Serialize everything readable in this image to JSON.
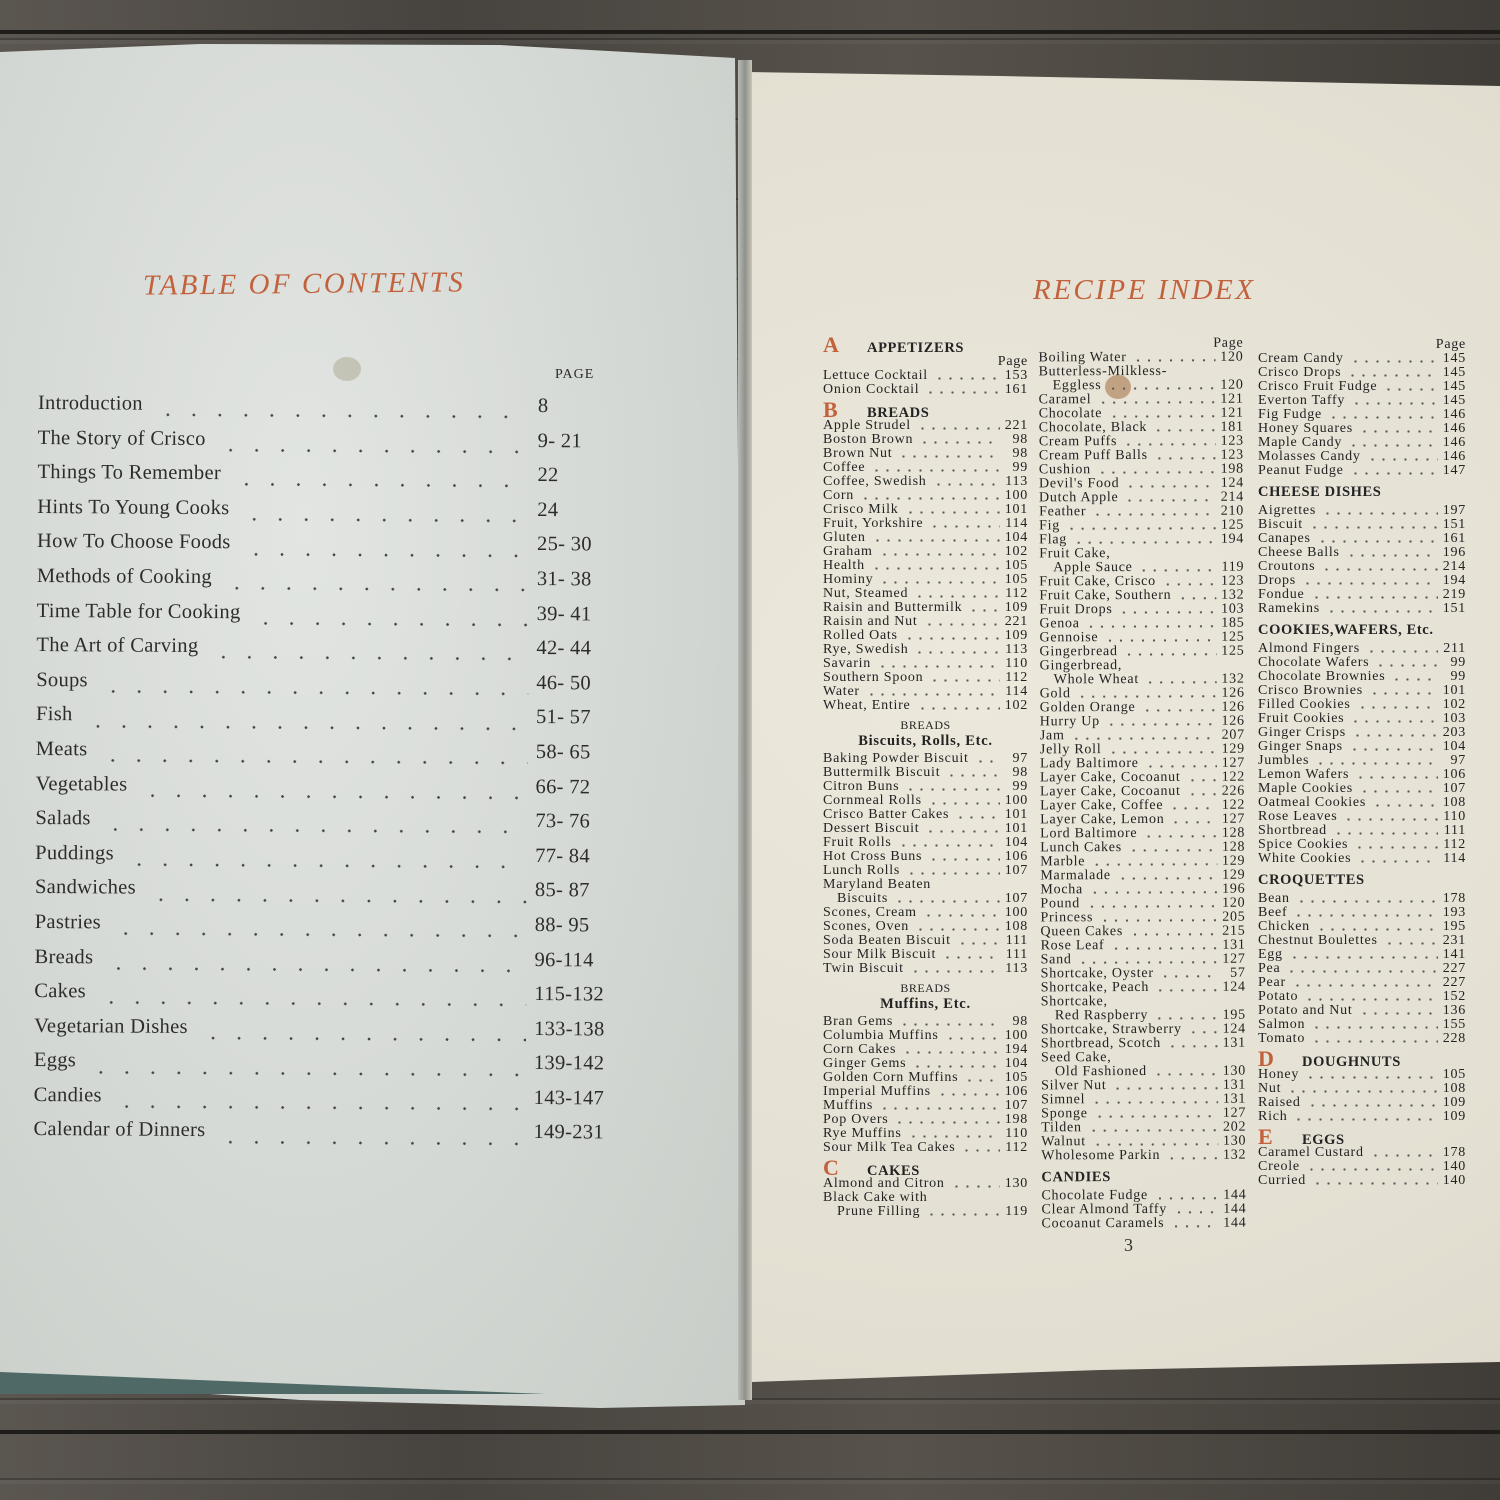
{
  "left_page": {
    "title": "TABLE OF CONTENTS",
    "page_label": "PAGE",
    "entries": [
      {
        "name": "Introduction",
        "page": "8"
      },
      {
        "name": "The Story of Crisco",
        "page": "9- 21"
      },
      {
        "name": "Things To Remember",
        "page": "22"
      },
      {
        "name": "Hints To Young Cooks",
        "page": "24"
      },
      {
        "name": "How To Choose Foods",
        "page": "25- 30"
      },
      {
        "name": "Methods of Cooking",
        "page": "31- 38"
      },
      {
        "name": "Time Table for Cooking",
        "page": "39- 41"
      },
      {
        "name": "The Art of Carving",
        "page": "42- 44"
      },
      {
        "name": "Soups",
        "page": "46- 50"
      },
      {
        "name": "Fish",
        "page": "51- 57"
      },
      {
        "name": "Meats",
        "page": "58- 65"
      },
      {
        "name": "Vegetables",
        "page": "66- 72"
      },
      {
        "name": "Salads",
        "page": "73- 76"
      },
      {
        "name": "Puddings",
        "page": "77- 84"
      },
      {
        "name": "Sandwiches",
        "page": "85- 87"
      },
      {
        "name": "Pastries",
        "page": "88- 95"
      },
      {
        "name": "Breads",
        "page": "96-114"
      },
      {
        "name": "Cakes",
        "page": "115-132"
      },
      {
        "name": "Vegetarian Dishes",
        "page": "133-138"
      },
      {
        "name": "Eggs",
        "page": "139-142"
      },
      {
        "name": "Candies",
        "page": "143-147"
      },
      {
        "name": "Calendar of Dinners",
        "page": "149-231"
      }
    ]
  },
  "right_page": {
    "title": "RECIPE INDEX",
    "folio": "3",
    "accent_color": "#c2623c",
    "columns": [
      {
        "blocks": [
          {
            "letter": "A",
            "title": "APPETIZERS",
            "page_label": "Page",
            "items": [
              {
                "name": "Lettuce Cocktail",
                "page": "153"
              },
              {
                "name": "Onion Cocktail",
                "page": "161"
              }
            ]
          },
          {
            "letter": "B",
            "title": "BREADS",
            "items": [
              {
                "name": "Apple Strudel",
                "page": "221"
              },
              {
                "name": "Boston Brown",
                "page": "98"
              },
              {
                "name": "Brown Nut",
                "page": "98"
              },
              {
                "name": "Coffee",
                "page": "99"
              },
              {
                "name": "Coffee, Swedish",
                "page": "113"
              },
              {
                "name": "Corn",
                "page": "100"
              },
              {
                "name": "Crisco Milk",
                "page": "101"
              },
              {
                "name": "Fruit, Yorkshire",
                "page": "114"
              },
              {
                "name": "Gluten",
                "page": "104"
              },
              {
                "name": "Graham",
                "page": "102"
              },
              {
                "name": "Health",
                "page": "105"
              },
              {
                "name": "Hominy",
                "page": "105"
              },
              {
                "name": "Nut, Steamed",
                "page": "112"
              },
              {
                "name": "Raisin and Buttermilk",
                "page": "109"
              },
              {
                "name": "Raisin and Nut",
                "page": "221"
              },
              {
                "name": "Rolled Oats",
                "page": "109"
              },
              {
                "name": "Rye, Swedish",
                "page": "113"
              },
              {
                "name": "Savarin",
                "page": "110"
              },
              {
                "name": "Southern Spoon",
                "page": "112"
              },
              {
                "name": "Water",
                "page": "114"
              },
              {
                "name": "Wheat, Entire",
                "page": "102"
              }
            ]
          },
          {
            "pre": "BREADS",
            "subtitle": "Biscuits, Rolls, Etc.",
            "items": [
              {
                "name": "Baking Powder Biscuit",
                "page": "97"
              },
              {
                "name": "Buttermilk Biscuit",
                "page": "98"
              },
              {
                "name": "Citron Buns",
                "page": "99"
              },
              {
                "name": "Cornmeal Rolls",
                "page": "100"
              },
              {
                "name": "Crisco Batter Cakes",
                "page": "101"
              },
              {
                "name": "Dessert Biscuit",
                "page": "101"
              },
              {
                "name": "Fruit Rolls",
                "page": "104"
              },
              {
                "name": "Hot Cross Buns",
                "page": "106"
              },
              {
                "name": "Lunch Rolls",
                "page": "107"
              },
              {
                "name": "Maryland Beaten",
                "cont": "Biscuits",
                "page": "107"
              },
              {
                "name": "Scones, Cream",
                "page": "100"
              },
              {
                "name": "Scones, Oven",
                "page": "108"
              },
              {
                "name": "Soda Beaten Biscuit",
                "page": "111"
              },
              {
                "name": "Sour Milk Biscuit",
                "page": "111"
              },
              {
                "name": "Twin Biscuit",
                "page": "113"
              }
            ]
          },
          {
            "pre": "BREADS",
            "subtitle": "Muffins, Etc.",
            "items": [
              {
                "name": "Bran Gems",
                "page": "98"
              },
              {
                "name": "Columbia Muffins",
                "page": "100"
              },
              {
                "name": "Corn Cakes",
                "page": "194"
              },
              {
                "name": "Ginger Gems",
                "page": "104"
              },
              {
                "name": "Golden Corn Muffins",
                "page": "105"
              },
              {
                "name": "Imperial Muffins",
                "page": "106"
              },
              {
                "name": "Muffins",
                "page": "107"
              },
              {
                "name": "Pop Overs",
                "page": "198"
              },
              {
                "name": "Rye Muffins",
                "page": "110"
              },
              {
                "name": "Sour Milk Tea Cakes",
                "page": "112"
              }
            ]
          },
          {
            "letter": "C",
            "title": "CAKES",
            "items": [
              {
                "name": "Almond and Citron",
                "page": "130"
              },
              {
                "name": "Black Cake with",
                "cont": "Prune Filling",
                "page": "119"
              }
            ]
          }
        ]
      },
      {
        "blocks": [
          {
            "page_label": "Page",
            "items": [
              {
                "name": "Boiling Water",
                "page": "120"
              },
              {
                "name": "Butterless-Milkless-",
                "cont": "Eggless",
                "page": "120"
              },
              {
                "name": "Caramel",
                "page": "121"
              },
              {
                "name": "Chocolate",
                "page": "121"
              },
              {
                "name": "Chocolate, Black",
                "page": "181"
              },
              {
                "name": "Cream Puffs",
                "page": "123"
              },
              {
                "name": "Cream Puff Balls",
                "page": "123"
              },
              {
                "name": "Cushion",
                "page": "198"
              },
              {
                "name": "Devil's Food",
                "page": "124"
              },
              {
                "name": "Dutch Apple",
                "page": "214"
              },
              {
                "name": "Feather",
                "page": "210"
              },
              {
                "name": "Fig",
                "page": "125"
              },
              {
                "name": "Flag",
                "page": "194"
              },
              {
                "name": "Fruit Cake,",
                "cont": "Apple Sauce",
                "page": "119"
              },
              {
                "name": "Fruit Cake, Crisco",
                "page": "123"
              },
              {
                "name": "Fruit Cake, Southern",
                "page": "132"
              },
              {
                "name": "Fruit Drops",
                "page": "103"
              },
              {
                "name": "Genoa",
                "page": "185"
              },
              {
                "name": "Gennoise",
                "page": "125"
              },
              {
                "name": "Gingerbread",
                "page": "125"
              },
              {
                "name": "Gingerbread,",
                "cont": "Whole Wheat",
                "page": "132"
              },
              {
                "name": "Gold",
                "page": "126"
              },
              {
                "name": "Golden Orange",
                "page": "126"
              },
              {
                "name": "Hurry Up",
                "page": "126"
              },
              {
                "name": "Jam",
                "page": "207"
              },
              {
                "name": "Jelly Roll",
                "page": "129"
              },
              {
                "name": "Lady Baltimore",
                "page": "127"
              },
              {
                "name": "Layer Cake, Cocoanut",
                "page": "122"
              },
              {
                "name": "Layer Cake, Cocoanut",
                "page": "226"
              },
              {
                "name": "Layer Cake, Coffee",
                "page": "122"
              },
              {
                "name": "Layer Cake, Lemon",
                "page": "127"
              },
              {
                "name": "Lord Baltimore",
                "page": "128"
              },
              {
                "name": "Lunch Cakes",
                "page": "128"
              },
              {
                "name": "Marble",
                "page": "129"
              },
              {
                "name": "Marmalade",
                "page": "129"
              },
              {
                "name": "Mocha",
                "page": "196"
              },
              {
                "name": "Pound",
                "page": "120"
              },
              {
                "name": "Princess",
                "page": "205"
              },
              {
                "name": "Queen Cakes",
                "page": "215"
              },
              {
                "name": "Rose Leaf",
                "page": "131"
              },
              {
                "name": "Sand",
                "page": "127"
              },
              {
                "name": "Shortcake, Oyster",
                "page": "57"
              },
              {
                "name": "Shortcake, Peach",
                "page": "124"
              },
              {
                "name": "Shortcake,",
                "cont": "Red Raspberry",
                "page": "195"
              },
              {
                "name": "Shortcake, Strawberry",
                "page": "124"
              },
              {
                "name": "Shortbread, Scotch",
                "page": "131"
              },
              {
                "name": "Seed Cake,",
                "cont": "Old Fashioned",
                "page": "130"
              },
              {
                "name": "Silver Nut",
                "page": "131"
              },
              {
                "name": "Simnel",
                "page": "131"
              },
              {
                "name": "Sponge",
                "page": "127"
              },
              {
                "name": "Tilden",
                "page": "202"
              },
              {
                "name": "Walnut",
                "page": "130"
              },
              {
                "name": "Wholesome Parkin",
                "page": "132"
              }
            ]
          },
          {
            "title": "CANDIES",
            "items": [
              {
                "name": "Chocolate Fudge",
                "page": "144"
              },
              {
                "name": "Clear Almond Taffy",
                "page": "144"
              },
              {
                "name": "Cocoanut Caramels",
                "page": "144"
              }
            ]
          }
        ]
      },
      {
        "blocks": [
          {
            "page_label": "Page",
            "items": [
              {
                "name": "Cream Candy",
                "page": "145"
              },
              {
                "name": "Crisco Drops",
                "page": "145"
              },
              {
                "name": "Crisco Fruit Fudge",
                "page": "145"
              },
              {
                "name": "Everton Taffy",
                "page": "145"
              },
              {
                "name": "Fig Fudge",
                "page": "146"
              },
              {
                "name": "Honey Squares",
                "page": "146"
              },
              {
                "name": "Maple Candy",
                "page": "146"
              },
              {
                "name": "Molasses Candy",
                "page": "146"
              },
              {
                "name": "Peanut Fudge",
                "page": "147"
              }
            ]
          },
          {
            "title": "CHEESE DISHES",
            "items": [
              {
                "name": "Aigrettes",
                "page": "197"
              },
              {
                "name": "Biscuit",
                "page": "151"
              },
              {
                "name": "Canapes",
                "page": "161"
              },
              {
                "name": "Cheese Balls",
                "page": "196"
              },
              {
                "name": "Croutons",
                "page": "214"
              },
              {
                "name": "Drops",
                "page": "194"
              },
              {
                "name": "Fondue",
                "page": "219"
              },
              {
                "name": "Ramekins",
                "page": "151"
              }
            ]
          },
          {
            "title": "COOKIES,WAFERS, Etc.",
            "items": [
              {
                "name": "Almond Fingers",
                "page": "211"
              },
              {
                "name": "Chocolate Wafers",
                "page": "99"
              },
              {
                "name": "Chocolate Brownies",
                "page": "99"
              },
              {
                "name": "Crisco Brownies",
                "page": "101"
              },
              {
                "name": "Filled Cookies",
                "page": "102"
              },
              {
                "name": "Fruit Cookies",
                "page": "103"
              },
              {
                "name": "Ginger Crisps",
                "page": "203"
              },
              {
                "name": "Ginger Snaps",
                "page": "104"
              },
              {
                "name": "Jumbles",
                "page": "97"
              },
              {
                "name": "Lemon Wafers",
                "page": "106"
              },
              {
                "name": "Maple Cookies",
                "page": "107"
              },
              {
                "name": "Oatmeal Cookies",
                "page": "108"
              },
              {
                "name": "Rose Leaves",
                "page": "110"
              },
              {
                "name": "Shortbread",
                "page": "111"
              },
              {
                "name": "Spice Cookies",
                "page": "112"
              },
              {
                "name": "White Cookies",
                "page": "114"
              }
            ]
          },
          {
            "title": "CROQUETTES",
            "items": [
              {
                "name": "Bean",
                "page": "178"
              },
              {
                "name": "Beef",
                "page": "193"
              },
              {
                "name": "Chicken",
                "page": "195"
              },
              {
                "name": "Chestnut Boulettes",
                "page": "231"
              },
              {
                "name": "Egg",
                "page": "141"
              },
              {
                "name": "Pea",
                "page": "227"
              },
              {
                "name": "Pear",
                "page": "227"
              },
              {
                "name": "Potato",
                "page": "152"
              },
              {
                "name": "Potato and Nut",
                "page": "136"
              },
              {
                "name": "Salmon",
                "page": "155"
              },
              {
                "name": "Tomato",
                "page": "228"
              }
            ]
          },
          {
            "letter": "D",
            "title": "DOUGHNUTS",
            "items": [
              {
                "name": "Honey",
                "page": "105"
              },
              {
                "name": "Nut",
                "page": "108"
              },
              {
                "name": "Raised",
                "page": "109"
              },
              {
                "name": "Rich",
                "page": "109"
              }
            ]
          },
          {
            "letter": "E",
            "title": "EGGS",
            "items": [
              {
                "name": "Caramel Custard",
                "page": "178"
              },
              {
                "name": "Creole",
                "page": "140"
              },
              {
                "name": "Curried",
                "page": "140"
              }
            ]
          }
        ]
      }
    ]
  }
}
